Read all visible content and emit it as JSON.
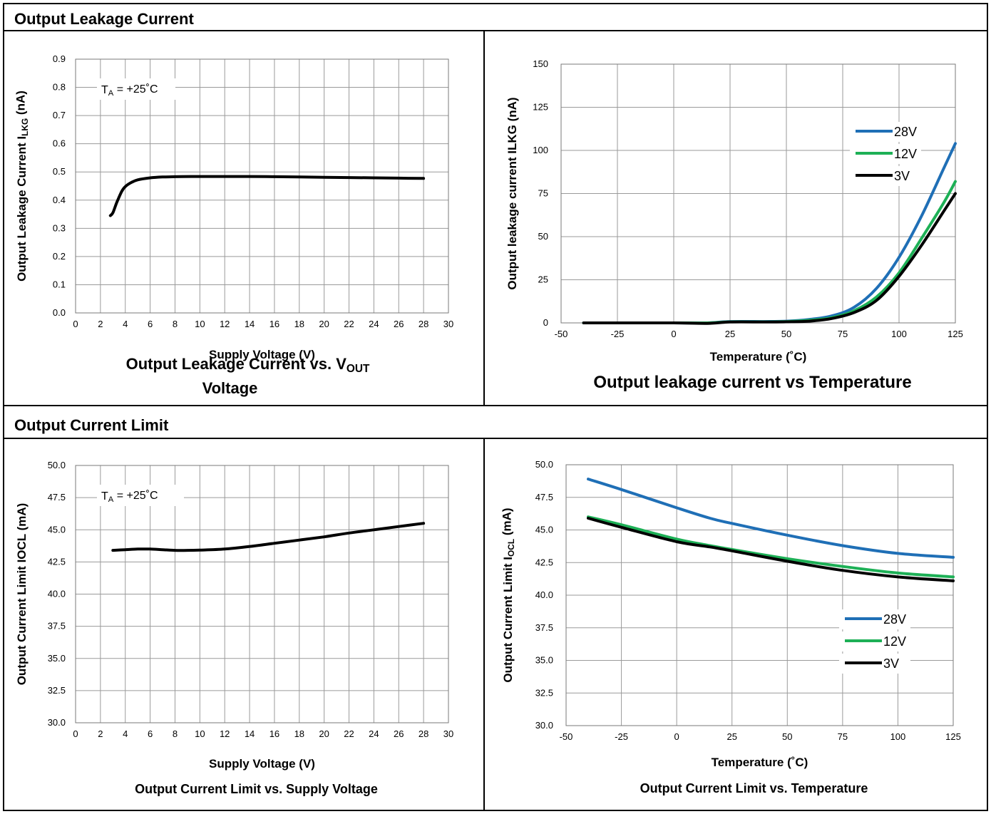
{
  "sections": [
    {
      "title": "Output Leakage Current"
    },
    {
      "title": "Output Current Limit"
    }
  ],
  "colors": {
    "s28": "#1f6fb6",
    "s12": "#1db056",
    "s3": "#000000",
    "grid": "#9a9a9a"
  },
  "chart_data": [
    {
      "type": "line",
      "title": "Output Leakage Current vs. V",
      "title_sub": "OUT",
      "title_line2": "Voltage",
      "xlabel": "Supply Voltage (V)",
      "ylabel": "Output Leakage Current I",
      "ylabel_sub": "LKG",
      "ylabel_unit": " (nA)",
      "annotation": "T",
      "annotation_sub": "A",
      "annotation_rest": " = +25˚C",
      "xlim": [
        0,
        30
      ],
      "ylim": [
        0.0,
        0.9
      ],
      "xticks": [
        "0",
        "2",
        "4",
        "6",
        "8",
        "10",
        "12",
        "14",
        "16",
        "18",
        "20",
        "22",
        "24",
        "26",
        "28",
        "30"
      ],
      "yticks": [
        "0.0",
        "0.1",
        "0.2",
        "0.3",
        "0.4",
        "0.5",
        "0.6",
        "0.7",
        "0.8",
        "0.9"
      ],
      "series": [
        {
          "color_key": "s3",
          "x": [
            2.8,
            3.0,
            3.3,
            3.7,
            4.0,
            4.5,
            5.0,
            6.0,
            7.0,
            8.0,
            10.0,
            12.0,
            14.0,
            16.0,
            18.0,
            20.0,
            22.0,
            24.0,
            26.0,
            28.0
          ],
          "y": [
            0.345,
            0.355,
            0.39,
            0.43,
            0.448,
            0.463,
            0.472,
            0.479,
            0.482,
            0.483,
            0.484,
            0.484,
            0.484,
            0.483,
            0.482,
            0.481,
            0.48,
            0.479,
            0.478,
            0.477
          ]
        }
      ]
    },
    {
      "type": "line",
      "title": "Output leakage current vs Temperature",
      "xlabel": "Temperature (˚C)",
      "ylabel": "Output leakage current ILKG (nA)",
      "xlim": [
        -50,
        125
      ],
      "ylim": [
        0,
        150
      ],
      "xticks": [
        "-50",
        "-25",
        "0",
        "25",
        "50",
        "75",
        "100",
        "125"
      ],
      "yticks": [
        "0",
        "25",
        "50",
        "75",
        "100",
        "125",
        "150"
      ],
      "legend": "right",
      "series": [
        {
          "name": "28V",
          "color_key": "s28",
          "x": [
            -40,
            -20,
            0,
            15,
            25,
            40,
            50,
            60,
            70,
            80,
            90,
            100,
            110,
            120,
            125
          ],
          "y": [
            0,
            0,
            0,
            0,
            0.8,
            0.8,
            1,
            2,
            4,
            9,
            20,
            38,
            62,
            90,
            104
          ]
        },
        {
          "name": "12V",
          "color_key": "s12",
          "x": [
            -40,
            -20,
            0,
            15,
            25,
            40,
            50,
            60,
            70,
            80,
            90,
            100,
            110,
            120,
            125
          ],
          "y": [
            0,
            0,
            0,
            0,
            0.6,
            0.6,
            0.8,
            1.5,
            3,
            7,
            15,
            29,
            49,
            70,
            82
          ]
        },
        {
          "name": "3V",
          "color_key": "s3",
          "x": [
            -40,
            -20,
            0,
            15,
            25,
            40,
            50,
            60,
            70,
            80,
            90,
            100,
            110,
            120,
            125
          ],
          "y": [
            0,
            0,
            0,
            -0.3,
            0.5,
            0.5,
            0.6,
            1,
            2.5,
            6,
            13,
            27,
            45,
            65,
            75
          ]
        }
      ]
    },
    {
      "type": "line",
      "title": "Output Current Limit vs. Supply Voltage",
      "xlabel": "Supply Voltage (V)",
      "ylabel": "Output Current Limit IOCL (mA)",
      "annotation": "T",
      "annotation_sub": "A",
      "annotation_rest": " = +25˚C",
      "xlim": [
        0,
        30
      ],
      "ylim": [
        30.0,
        50.0
      ],
      "xticks": [
        "0",
        "2",
        "4",
        "6",
        "8",
        "10",
        "12",
        "14",
        "16",
        "18",
        "20",
        "22",
        "24",
        "26",
        "28",
        "30"
      ],
      "yticks": [
        "30.0",
        "32.5",
        "35.0",
        "37.5",
        "40.0",
        "42.5",
        "45.0",
        "47.5",
        "50.0"
      ],
      "series": [
        {
          "color_key": "s3",
          "x": [
            3,
            4,
            5,
            6,
            7,
            8,
            9,
            10,
            12,
            14,
            16,
            18,
            20,
            22,
            24,
            26,
            28
          ],
          "y": [
            43.4,
            43.45,
            43.5,
            43.5,
            43.45,
            43.4,
            43.4,
            43.42,
            43.5,
            43.7,
            43.95,
            44.2,
            44.45,
            44.75,
            45.0,
            45.25,
            45.5
          ]
        }
      ]
    },
    {
      "type": "line",
      "title": "Output Current Limit vs. Temperature",
      "xlabel": "Temperature (˚C)",
      "ylabel": "Output Current Limit I",
      "ylabel_sub": "OCL",
      "ylabel_unit": " (mA)",
      "xlim": [
        -50,
        125
      ],
      "ylim": [
        30.0,
        50.0
      ],
      "xticks": [
        "-50",
        "-25",
        "0",
        "25",
        "50",
        "75",
        "100",
        "125"
      ],
      "yticks": [
        "30.0",
        "32.5",
        "35.0",
        "37.5",
        "40.0",
        "42.5",
        "45.0",
        "47.5",
        "50.0"
      ],
      "legend": "right",
      "series": [
        {
          "name": "28V",
          "color_key": "s28",
          "x": [
            -40,
            -25,
            0,
            15,
            25,
            50,
            75,
            100,
            125
          ],
          "y": [
            48.9,
            48.1,
            46.7,
            45.9,
            45.5,
            44.6,
            43.8,
            43.2,
            42.9
          ]
        },
        {
          "name": "12V",
          "color_key": "s12",
          "x": [
            -40,
            -25,
            0,
            15,
            25,
            50,
            75,
            100,
            125
          ],
          "y": [
            46.0,
            45.4,
            44.3,
            43.8,
            43.5,
            42.8,
            42.2,
            41.7,
            41.4
          ]
        },
        {
          "name": "3V",
          "color_key": "s3",
          "x": [
            -40,
            -25,
            0,
            15,
            25,
            50,
            75,
            100,
            125
          ],
          "y": [
            45.9,
            45.2,
            44.1,
            43.7,
            43.4,
            42.6,
            41.9,
            41.4,
            41.1
          ]
        }
      ]
    }
  ]
}
